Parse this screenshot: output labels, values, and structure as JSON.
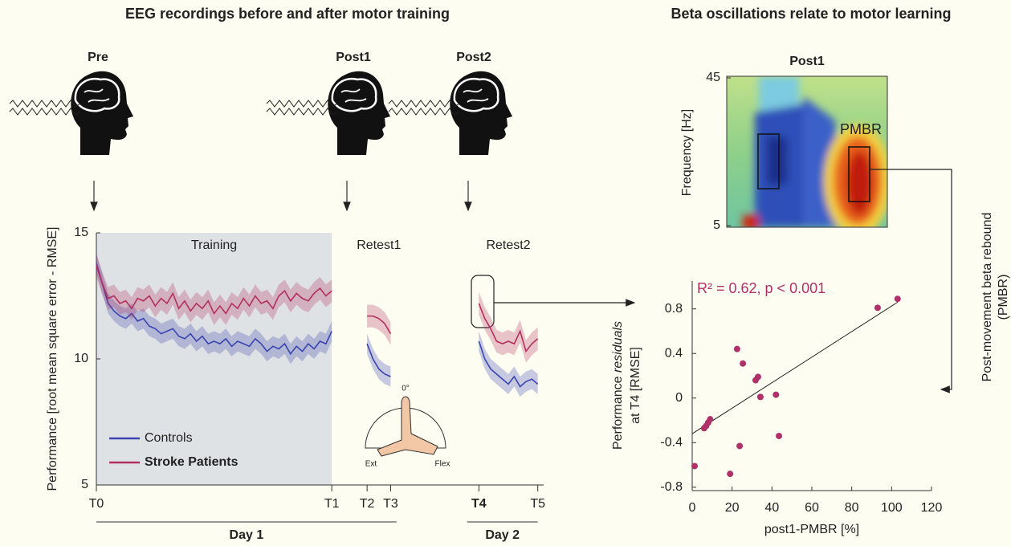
{
  "figure": {
    "left_title": "EEG recordings before and after motor training",
    "right_title": "Beta oscillations relate to motor learning",
    "sessions": [
      "Pre",
      "Post1",
      "Post2"
    ],
    "hand_diagram": {
      "angle": "0°",
      "left": "Ext",
      "right": "Flex"
    },
    "side_label": [
      "Post-movement beta rebound",
      "(PMBR)"
    ]
  },
  "chart_data": [
    {
      "type": "line",
      "ylabel": "Performance [root mean square error - RMSE]",
      "xlim": [
        0,
        76
      ],
      "ylim": [
        5,
        15
      ],
      "yticks": [
        5,
        10,
        15
      ],
      "xticks": [
        {
          "value": 0,
          "label": "T0"
        },
        {
          "value": 40,
          "label": "T1"
        },
        {
          "value": 46,
          "label": "T2"
        },
        {
          "value": 50,
          "label": "T3"
        },
        {
          "value": 65,
          "label": "T4",
          "bold": true
        },
        {
          "value": 75,
          "label": "T5"
        }
      ],
      "segments": [
        {
          "label": "Training",
          "x": [
            0,
            40
          ],
          "shaded": true
        },
        {
          "label": "Retest1",
          "x": [
            46,
            50
          ]
        },
        {
          "label": "Retest2",
          "x": [
            65,
            75
          ]
        }
      ],
      "periods": [
        {
          "label": "Day 1",
          "x": [
            0,
            51
          ]
        },
        {
          "label": "Day 2",
          "x": [
            63,
            75
          ]
        }
      ],
      "x": [
        0,
        1,
        2,
        3,
        4,
        5,
        6,
        7,
        8,
        9,
        10,
        11,
        12,
        13,
        14,
        15,
        16,
        17,
        18,
        19,
        20,
        21,
        22,
        23,
        24,
        25,
        26,
        27,
        28,
        29,
        30,
        31,
        32,
        33,
        34,
        35,
        36,
        37,
        38,
        39,
        40,
        43,
        46,
        47,
        48,
        49,
        50,
        57,
        65,
        66,
        67,
        68,
        69,
        70,
        71,
        72,
        73,
        74,
        75
      ],
      "series": [
        {
          "name": "Controls",
          "color": "#3a44b0",
          "error": 0.4,
          "values": [
            13.8,
            13.0,
            12.2,
            11.9,
            11.7,
            11.6,
            11.8,
            11.5,
            11.6,
            11.3,
            11.2,
            11.0,
            11.1,
            11.2,
            10.9,
            10.8,
            11.0,
            10.7,
            10.9,
            10.6,
            10.7,
            10.6,
            10.8,
            10.5,
            10.7,
            10.6,
            10.5,
            10.8,
            10.6,
            10.3,
            10.5,
            10.4,
            10.6,
            10.2,
            10.5,
            10.3,
            10.6,
            10.4,
            10.7,
            10.6,
            11.1,
            null,
            10.6,
            10.0,
            9.6,
            9.4,
            9.3,
            null,
            10.7,
            10.0,
            9.6,
            9.4,
            9.2,
            9.0,
            9.3,
            8.9,
            9.1,
            9.2,
            9.0
          ]
        },
        {
          "name": "Stroke Patients",
          "color": "#b3305e",
          "error": 0.45,
          "legend_bold": true,
          "values": [
            13.7,
            13.0,
            12.4,
            12.5,
            12.2,
            12.3,
            12.0,
            12.4,
            12.3,
            12.5,
            12.1,
            12.4,
            12.2,
            12.6,
            12.0,
            12.3,
            11.9,
            12.2,
            12.0,
            12.3,
            11.8,
            12.1,
            11.8,
            12.2,
            12.0,
            12.4,
            12.1,
            12.5,
            12.2,
            12.3,
            12.0,
            12.5,
            12.7,
            12.3,
            12.6,
            12.4,
            12.3,
            12.6,
            12.8,
            12.5,
            12.7,
            null,
            11.7,
            11.7,
            11.6,
            11.4,
            11.0,
            null,
            12.2,
            11.6,
            11.2,
            10.7,
            10.6,
            10.7,
            10.6,
            11.1,
            10.3,
            10.6,
            10.8
          ]
        }
      ]
    },
    {
      "type": "heatmap",
      "title": "Post1",
      "ylabel": "Frequency [Hz]",
      "ylim": [
        5,
        45
      ],
      "yticks": [
        5,
        45
      ],
      "annotation": "PMBR"
    },
    {
      "type": "scatter",
      "annotation": "R² = 0.62, p < 0.001",
      "xlabel": "post1-PMBR [%]",
      "ylabel": [
        "Performance",
        "residuals",
        "at T4 [RMSE]"
      ],
      "color": "#b0306a",
      "xlim": [
        0,
        120
      ],
      "ylim": [
        -0.83,
        1.05
      ],
      "xticks": [
        0,
        20,
        40,
        60,
        80,
        100,
        120
      ],
      "yticks": [
        -0.8,
        -0.4,
        0,
        0.4,
        0.8
      ],
      "x": [
        1.2,
        6,
        7,
        8,
        9,
        19,
        22.5,
        23.8,
        25.4,
        31.8,
        33,
        34.2,
        42,
        43.5,
        93,
        103
      ],
      "y": [
        -0.61,
        -0.27,
        -0.25,
        -0.22,
        -0.19,
        -0.68,
        0.44,
        -0.43,
        0.31,
        0.16,
        0.19,
        0.01,
        0.03,
        -0.34,
        0.81,
        0.89
      ],
      "fit_line": {
        "x": [
          0,
          103
        ],
        "y": [
          -0.32,
          0.86
        ]
      }
    }
  ]
}
